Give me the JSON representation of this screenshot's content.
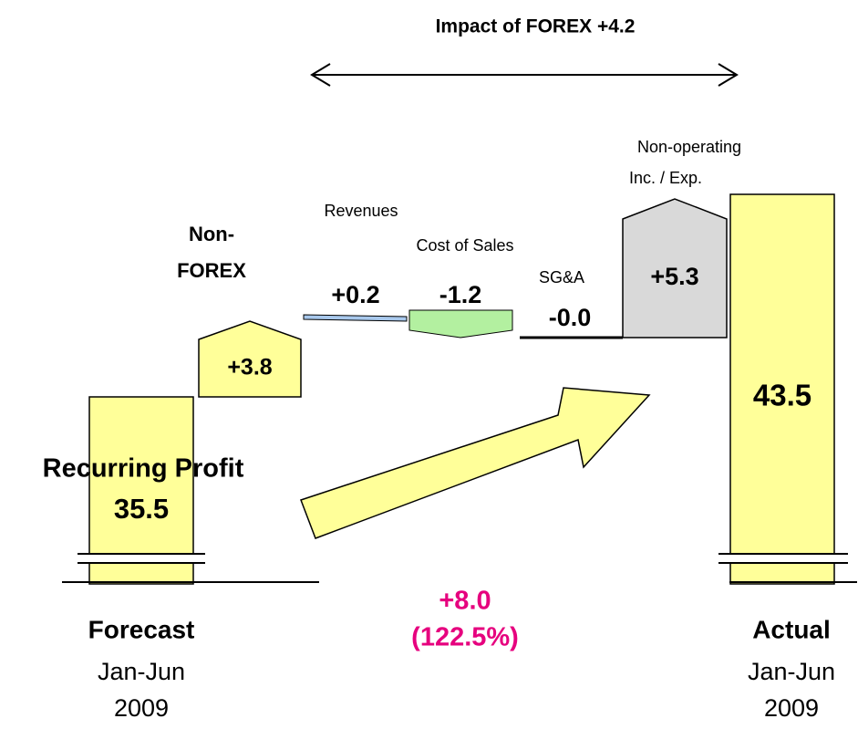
{
  "title": "Impact of FOREX  +4.2",
  "forecast": {
    "caption": "Recurring Profit",
    "value": "35.5",
    "label": "Forecast",
    "period": "Jan-Jun",
    "year": "2009"
  },
  "steps": [
    {
      "label": [
        "Non-",
        "FOREX"
      ],
      "value": "+3.8"
    },
    {
      "label": [
        "Revenues"
      ],
      "value": "+0.2"
    },
    {
      "label": [
        "Cost of Sales"
      ],
      "value": "-1.2"
    },
    {
      "label": [
        "SG&A"
      ],
      "value": "-0.0"
    },
    {
      "label": [
        "Non-operating",
        "Inc. / Exp."
      ],
      "value": "+5.3"
    }
  ],
  "change": {
    "value": "+8.0",
    "ratio": "(122.5%)"
  },
  "actual": {
    "value": "43.5",
    "label": "Actual",
    "period": "Jan-Jun",
    "year": "2009"
  }
}
